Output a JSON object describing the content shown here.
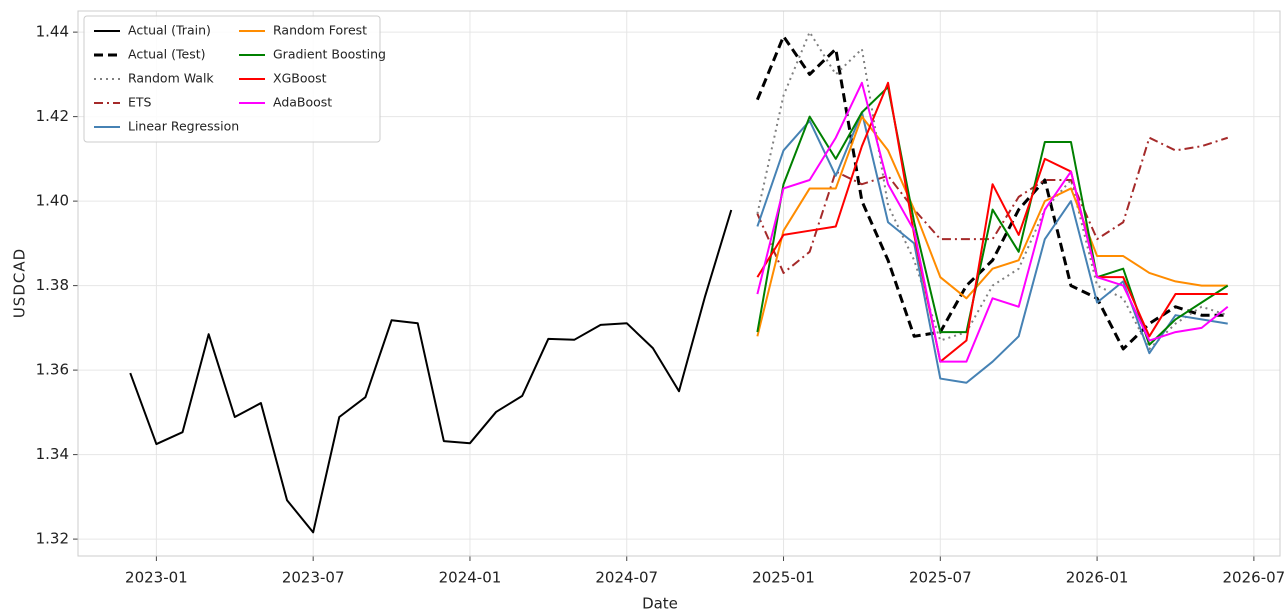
{
  "chart_data": {
    "type": "line",
    "x_label": "Date",
    "y_label": "USDCAD",
    "x": [
      "2022-12",
      "2023-01",
      "2023-02",
      "2023-03",
      "2023-04",
      "2023-05",
      "2023-06",
      "2023-07",
      "2023-08",
      "2023-09",
      "2023-10",
      "2023-11",
      "2023-12",
      "2024-01",
      "2024-02",
      "2024-03",
      "2024-04",
      "2024-05",
      "2024-06",
      "2024-07",
      "2024-08",
      "2024-09",
      "2024-10",
      "2024-11",
      "2024-12",
      "2025-01",
      "2025-02",
      "2025-03",
      "2025-04",
      "2025-05",
      "2025-06",
      "2025-07",
      "2025-08",
      "2025-09",
      "2025-10",
      "2025-11",
      "2025-12",
      "2026-01",
      "2026-02",
      "2026-03",
      "2026-04",
      "2026-05",
      "2026-06"
    ],
    "xlim": [
      "2022-10",
      "2026-08"
    ],
    "xticks": [
      "2023-01",
      "2023-07",
      "2024-01",
      "2024-07",
      "2025-01",
      "2025-07",
      "2026-01",
      "2026-07"
    ],
    "ylim": [
      1.316,
      1.445
    ],
    "yticks": [
      1.32,
      1.34,
      1.36,
      1.38,
      {
        "value": 1.4,
        "label": "1.40"
      },
      1.42,
      1.44
    ],
    "grid": true,
    "legend": "upper left",
    "legend_columns": 2,
    "series": [
      {
        "name": "Actual (Train)",
        "color": "#000000",
        "dash": "solid",
        "values": [
          1.3593,
          1.3425,
          1.3453,
          1.3685,
          1.3489,
          1.3522,
          1.3292,
          1.3216,
          1.3489,
          1.3536,
          1.3718,
          1.3711,
          1.3432,
          1.3427,
          1.3501,
          1.3539,
          1.3674,
          1.3672,
          1.3707,
          1.3711,
          1.3652,
          1.355,
          1.3775,
          1.3979,
          null,
          null,
          null,
          null,
          null,
          null,
          null,
          null,
          null,
          null,
          null,
          null,
          null,
          null,
          null,
          null,
          null,
          null,
          null
        ]
      },
      {
        "name": "Actual (Test)",
        "color": "#000000",
        "dash": "dashed",
        "values": [
          null,
          null,
          null,
          null,
          null,
          null,
          null,
          null,
          null,
          null,
          null,
          null,
          null,
          null,
          null,
          null,
          null,
          null,
          null,
          null,
          null,
          null,
          null,
          null,
          1.424,
          1.439,
          1.43,
          1.436,
          1.4,
          1.386,
          1.368,
          1.369,
          1.38,
          1.386,
          1.398,
          1.405,
          1.38,
          1.377,
          1.365,
          1.371,
          1.375,
          1.373,
          1.373
        ]
      },
      {
        "name": "Random Walk",
        "color": "#808080",
        "dash": "dotted",
        "values": [
          null,
          null,
          null,
          null,
          null,
          null,
          null,
          null,
          null,
          null,
          null,
          null,
          null,
          null,
          null,
          null,
          null,
          null,
          null,
          null,
          null,
          null,
          null,
          null,
          1.397,
          1.425,
          1.44,
          1.43,
          1.436,
          1.399,
          1.386,
          1.367,
          1.369,
          1.38,
          1.384,
          1.398,
          1.405,
          1.38,
          1.377,
          1.365,
          1.371,
          1.375,
          1.373
        ]
      },
      {
        "name": "ETS",
        "color": "#a52a2a",
        "dash": "dashdot",
        "values": [
          null,
          null,
          null,
          null,
          null,
          null,
          null,
          null,
          null,
          null,
          null,
          null,
          null,
          null,
          null,
          null,
          null,
          null,
          null,
          null,
          null,
          null,
          null,
          null,
          1.397,
          1.383,
          1.388,
          1.407,
          1.404,
          1.406,
          1.398,
          1.391,
          1.391,
          1.391,
          1.401,
          1.405,
          1.405,
          1.391,
          1.395,
          1.415,
          1.412,
          1.413,
          1.415
        ]
      },
      {
        "name": "Linear Regression",
        "color": "#4682b4",
        "dash": "solid",
        "values": [
          null,
          null,
          null,
          null,
          null,
          null,
          null,
          null,
          null,
          null,
          null,
          null,
          null,
          null,
          null,
          null,
          null,
          null,
          null,
          null,
          null,
          null,
          null,
          null,
          1.394,
          1.412,
          1.419,
          1.406,
          1.421,
          1.395,
          1.39,
          1.358,
          1.357,
          1.362,
          1.368,
          1.391,
          1.4,
          1.376,
          1.381,
          1.364,
          1.373,
          1.372,
          1.371
        ]
      },
      {
        "name": "Random Forest",
        "color": "#ff8c00",
        "dash": "solid",
        "values": [
          null,
          null,
          null,
          null,
          null,
          null,
          null,
          null,
          null,
          null,
          null,
          null,
          null,
          null,
          null,
          null,
          null,
          null,
          null,
          null,
          null,
          null,
          null,
          null,
          1.368,
          1.393,
          1.403,
          1.403,
          1.42,
          1.412,
          1.398,
          1.382,
          1.377,
          1.384,
          1.386,
          1.4,
          1.403,
          1.387,
          1.387,
          1.383,
          1.381,
          1.38,
          1.38
        ]
      },
      {
        "name": "Gradient Boosting",
        "color": "#008000",
        "dash": "solid",
        "values": [
          null,
          null,
          null,
          null,
          null,
          null,
          null,
          null,
          null,
          null,
          null,
          null,
          null,
          null,
          null,
          null,
          null,
          null,
          null,
          null,
          null,
          null,
          null,
          null,
          1.369,
          1.404,
          1.42,
          1.41,
          1.421,
          1.427,
          1.395,
          1.369,
          1.369,
          1.398,
          1.388,
          1.414,
          1.414,
          1.382,
          1.384,
          1.366,
          1.372,
          1.376,
          1.38
        ]
      },
      {
        "name": "XGBoost",
        "color": "#ff0000",
        "dash": "solid",
        "values": [
          null,
          null,
          null,
          null,
          null,
          null,
          null,
          null,
          null,
          null,
          null,
          null,
          null,
          null,
          null,
          null,
          null,
          null,
          null,
          null,
          null,
          null,
          null,
          null,
          1.382,
          1.392,
          1.393,
          1.394,
          1.413,
          1.428,
          1.392,
          1.362,
          1.367,
          1.404,
          1.392,
          1.41,
          1.407,
          1.382,
          1.382,
          1.368,
          1.378,
          1.378,
          1.378
        ]
      },
      {
        "name": "AdaBoost",
        "color": "#ff00ff",
        "dash": "solid",
        "values": [
          null,
          null,
          null,
          null,
          null,
          null,
          null,
          null,
          null,
          null,
          null,
          null,
          null,
          null,
          null,
          null,
          null,
          null,
          null,
          null,
          null,
          null,
          null,
          null,
          1.378,
          1.403,
          1.405,
          1.415,
          1.428,
          1.404,
          1.393,
          1.362,
          1.362,
          1.377,
          1.375,
          1.398,
          1.407,
          1.382,
          1.38,
          1.367,
          1.369,
          1.37,
          1.375
        ]
      }
    ]
  }
}
